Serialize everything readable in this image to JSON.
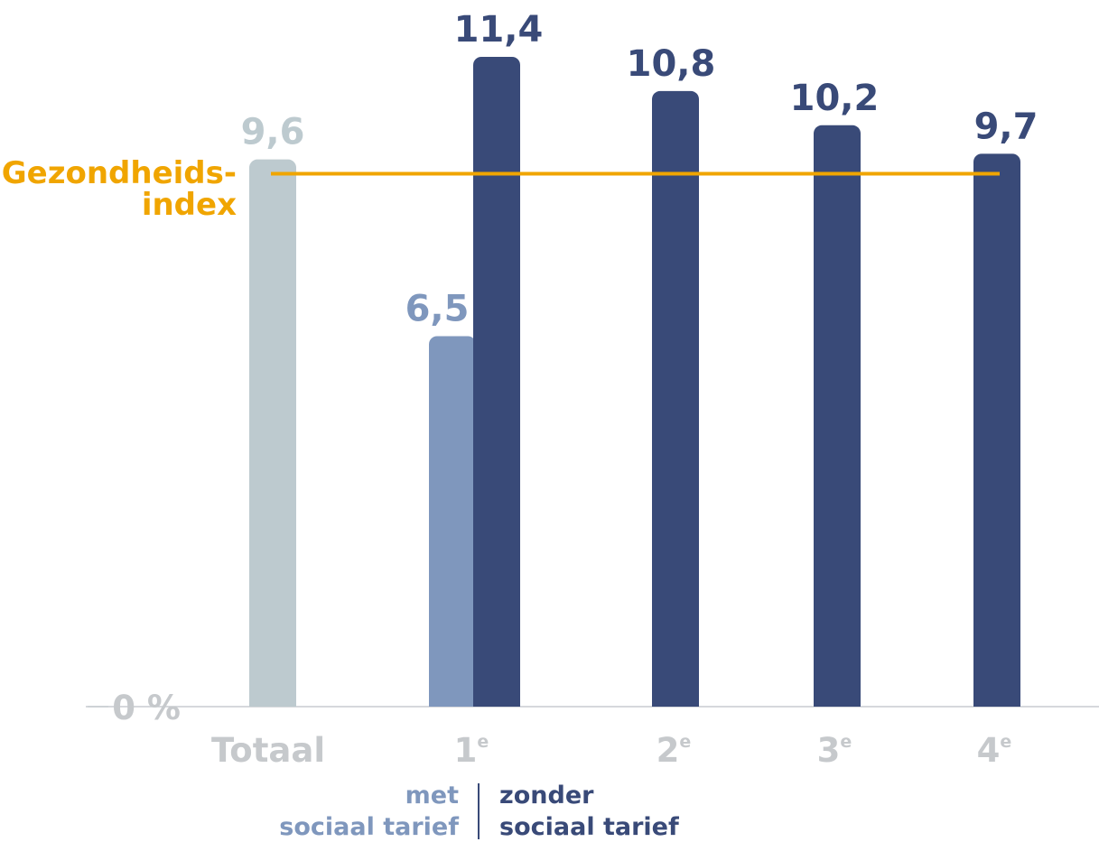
{
  "colors": {
    "totaal": "#bdcacf",
    "met": "#7f97bd",
    "zonder": "#394a78",
    "index_line": "#f0a500",
    "axis_text": "#c6c9cc",
    "axis_line": "#c8ccd0"
  },
  "chart_data": {
    "type": "bar",
    "categories": [
      "Totaal",
      "1",
      "2",
      "3",
      "4"
    ],
    "category_superscripts": [
      "",
      "e",
      "e",
      "e",
      "e"
    ],
    "series": [
      {
        "name": "met sociaal tarief",
        "values": [
          null,
          6.5,
          null,
          null,
          null
        ]
      },
      {
        "name": "zonder sociaal tarief",
        "values": [
          null,
          11.4,
          10.8,
          10.2,
          9.7
        ]
      }
    ],
    "totaal": {
      "value": 9.6
    },
    "value_labels": [
      "9,6",
      "6,5",
      "11,4",
      "10,8",
      "10,2",
      "9,7"
    ],
    "reference_line": {
      "name_line1": "Gezondheids-",
      "name_line2": "index",
      "value": 9.35
    },
    "y_axis_label": "0 %",
    "ylim": [
      0,
      11.8
    ],
    "legend": {
      "met_line1": "met",
      "met_line2": "sociaal tarief",
      "zonder_line1": "zonder",
      "zonder_line2": "sociaal tarief"
    }
  }
}
